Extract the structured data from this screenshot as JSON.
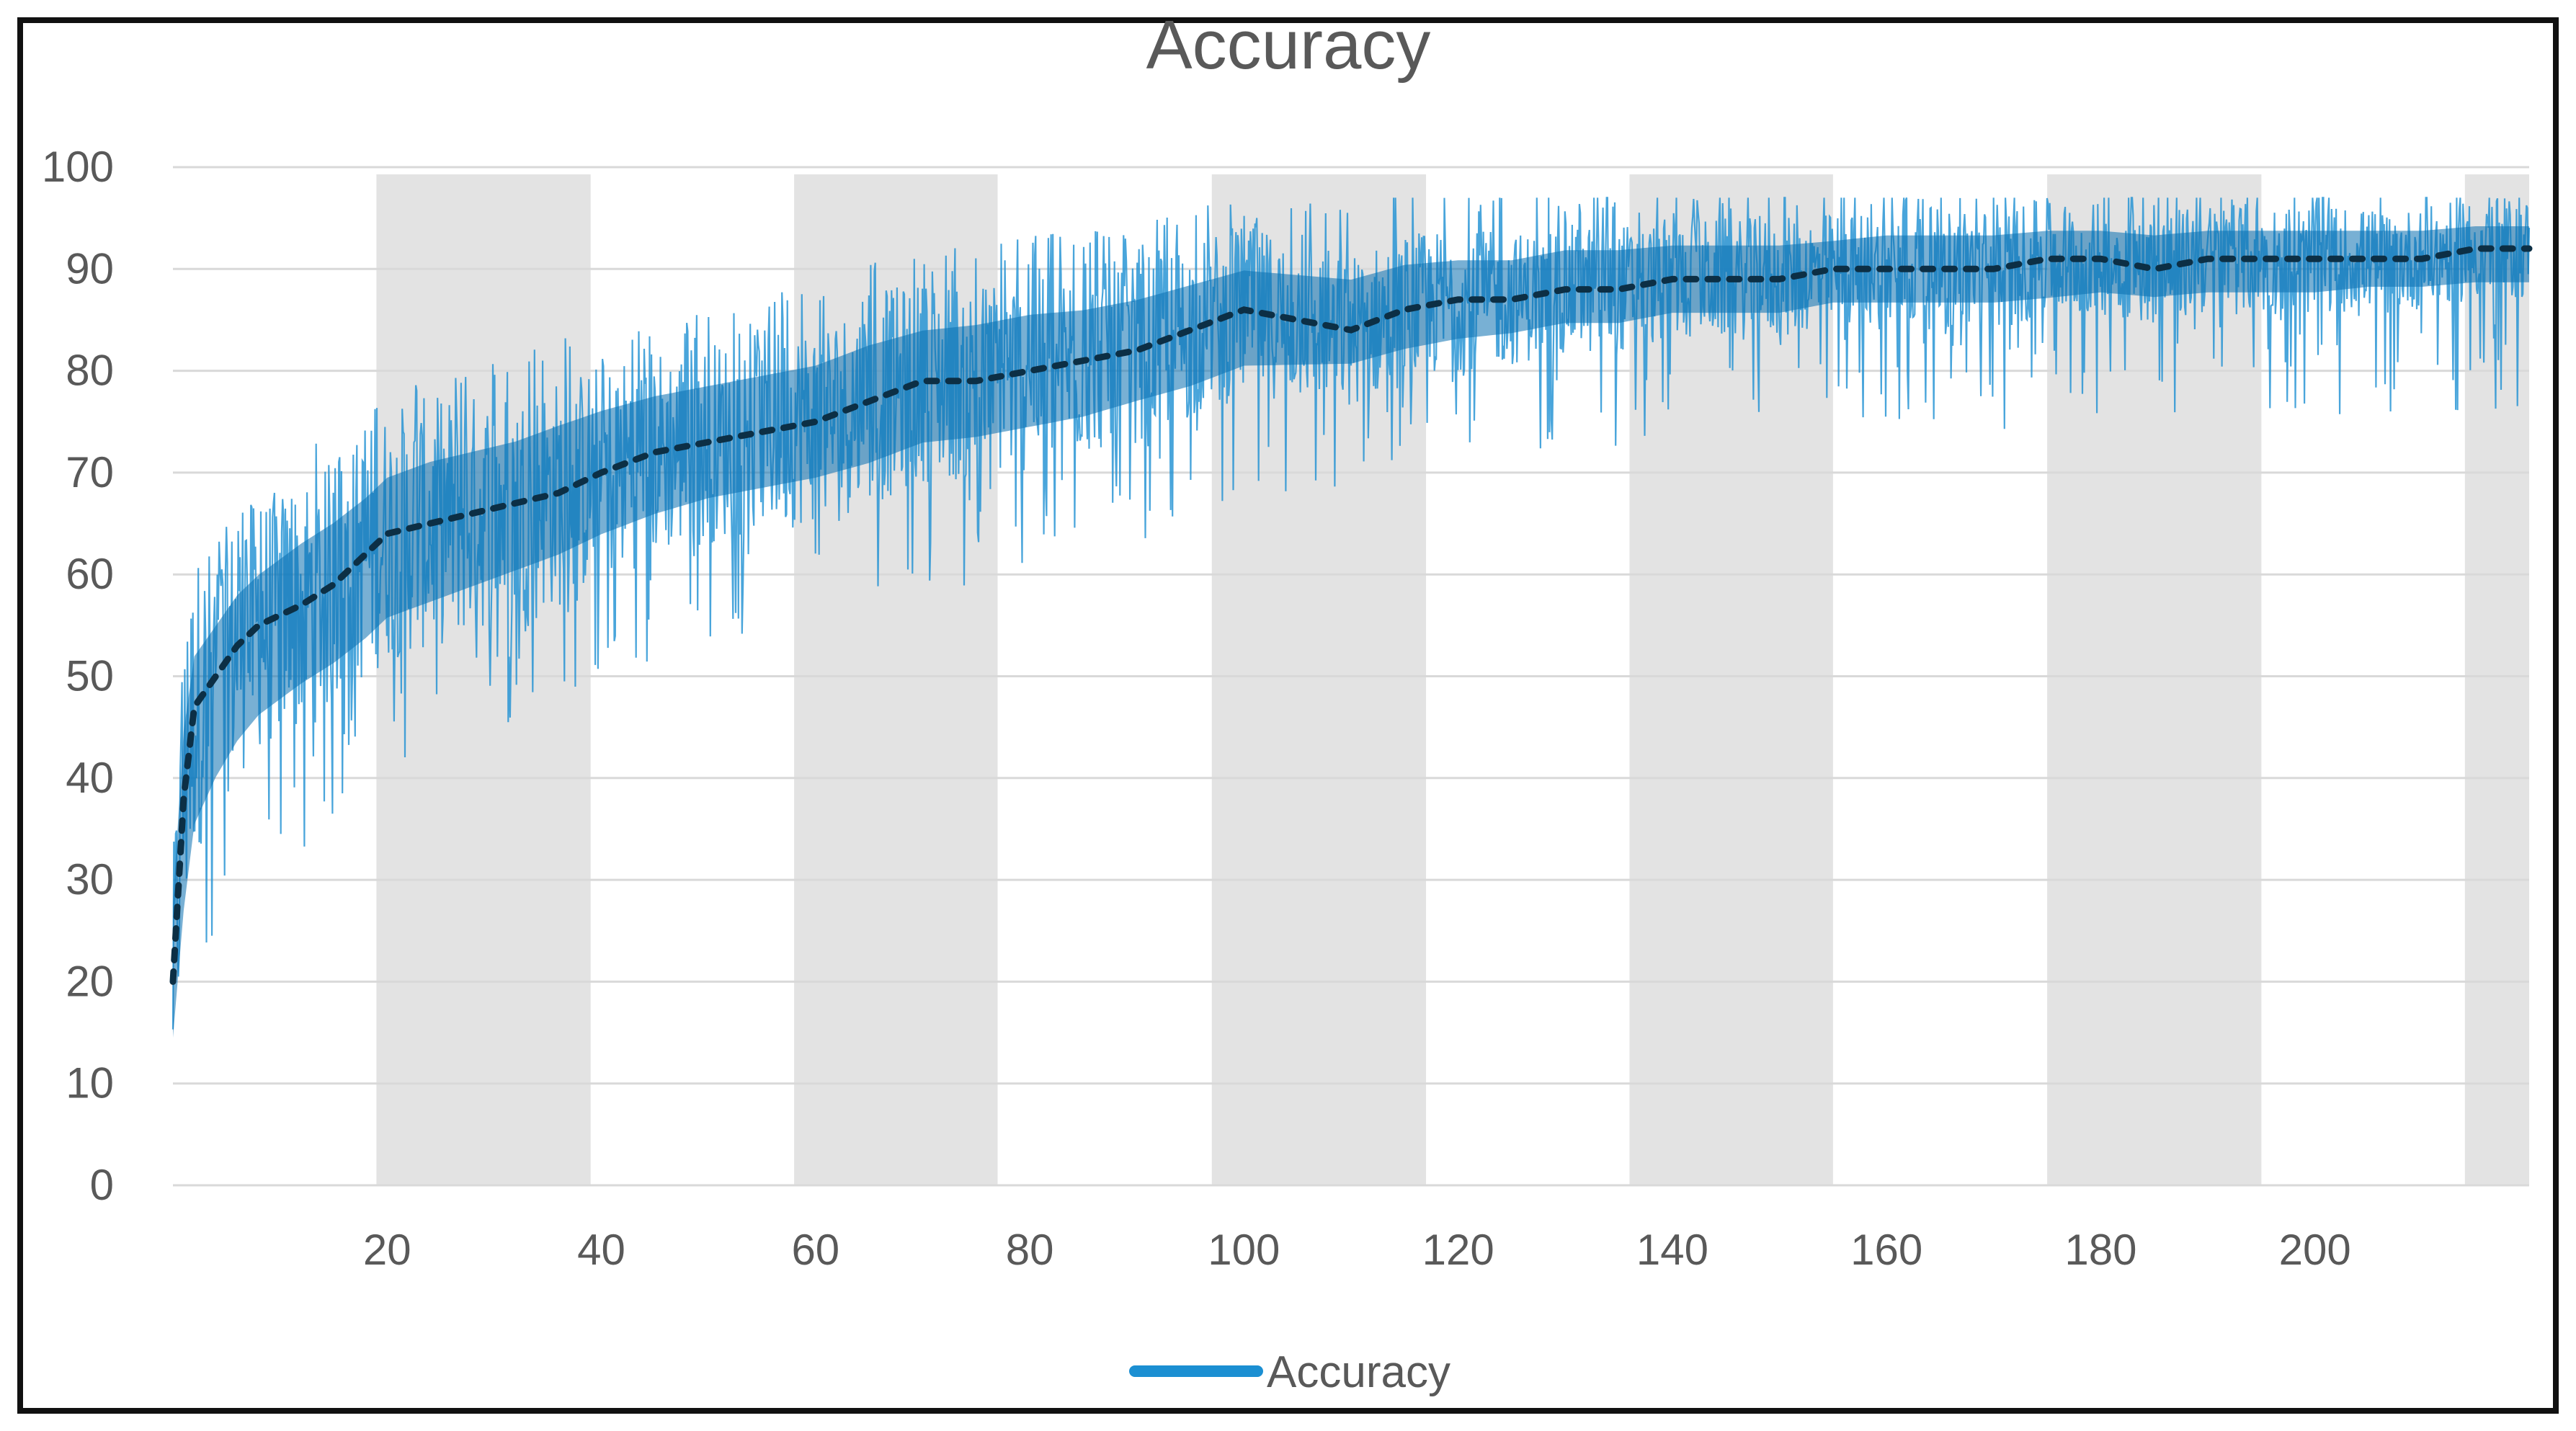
{
  "chart_data": {
    "type": "line",
    "title": "Accuracy",
    "xlabel": "",
    "ylabel": "",
    "xlim": [
      0,
      220
    ],
    "ylim": [
      0,
      100
    ],
    "x_ticks": [
      20,
      40,
      60,
      80,
      100,
      120,
      140,
      160,
      180,
      200
    ],
    "y_ticks": [
      0,
      10,
      20,
      30,
      40,
      50,
      60,
      70,
      80,
      90,
      100
    ],
    "grid": true,
    "legend_position": "bottom",
    "shaded_bands": [
      [
        19,
        39
      ],
      [
        58,
        77
      ],
      [
        97,
        117
      ],
      [
        136,
        155
      ],
      [
        175,
        195
      ],
      [
        214,
        220
      ]
    ],
    "series": [
      {
        "name": "Accuracy",
        "color": "#1b8fd2",
        "x": [
          0,
          1,
          2,
          4,
          6,
          8,
          10,
          12,
          15,
          18,
          20,
          24,
          28,
          32,
          36,
          40,
          45,
          50,
          55,
          60,
          65,
          70,
          75,
          80,
          85,
          90,
          95,
          100,
          105,
          110,
          115,
          120,
          125,
          130,
          135,
          140,
          145,
          150,
          155,
          160,
          165,
          170,
          175,
          180,
          185,
          190,
          195,
          200,
          205,
          210,
          215,
          220
        ],
        "mean": [
          20,
          38,
          47,
          50,
          53,
          55,
          56,
          57,
          59,
          62,
          64,
          65,
          66,
          67,
          68,
          70,
          72,
          73,
          74,
          75,
          77,
          79,
          79,
          80,
          81,
          82,
          84,
          86,
          85,
          84,
          86,
          87,
          87,
          88,
          88,
          89,
          89,
          89,
          90,
          90,
          90,
          90,
          91,
          91,
          90,
          91,
          91,
          91,
          91,
          91,
          92,
          92
        ],
        "low": [
          10,
          18,
          26,
          32,
          36,
          39,
          41,
          43,
          45,
          47,
          49,
          51,
          53,
          55,
          57,
          59,
          61,
          63,
          64,
          65,
          66,
          68,
          69,
          70,
          71,
          73,
          74,
          76,
          77,
          78,
          79,
          80,
          81,
          82,
          82,
          83,
          83,
          83,
          84,
          84,
          84,
          84,
          84,
          85,
          85,
          85,
          85,
          85,
          86,
          86,
          86,
          86
        ],
        "high": [
          34,
          50,
          56,
          59,
          62,
          64,
          66,
          68,
          70,
          72,
          74,
          76,
          77,
          78,
          80,
          81,
          82,
          83,
          84,
          85,
          87,
          88,
          89,
          90,
          90,
          91,
          92,
          93,
          93,
          93,
          94,
          94,
          94,
          95,
          95,
          95,
          95,
          95,
          95,
          96,
          96,
          96,
          96,
          96,
          96,
          96,
          96,
          96,
          96,
          96,
          96,
          96
        ]
      }
    ]
  }
}
